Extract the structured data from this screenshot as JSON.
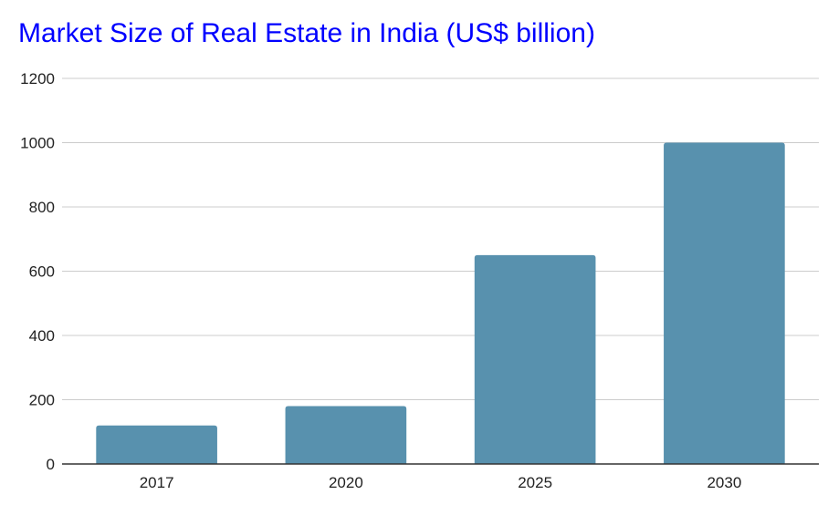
{
  "chart_data": {
    "type": "bar",
    "title": "Market Size of Real Estate in India (US$ billion)",
    "categories": [
      "2017",
      "2020",
      "2025",
      "2030"
    ],
    "values": [
      120,
      180,
      650,
      1000
    ],
    "xlabel": "",
    "ylabel": "",
    "ylim": [
      0,
      1200
    ],
    "yticks": [
      0,
      200,
      400,
      600,
      800,
      1000,
      1200
    ],
    "grid": true,
    "legend": "none",
    "bar_color": "#5891ae",
    "title_color": "#0000ff"
  }
}
